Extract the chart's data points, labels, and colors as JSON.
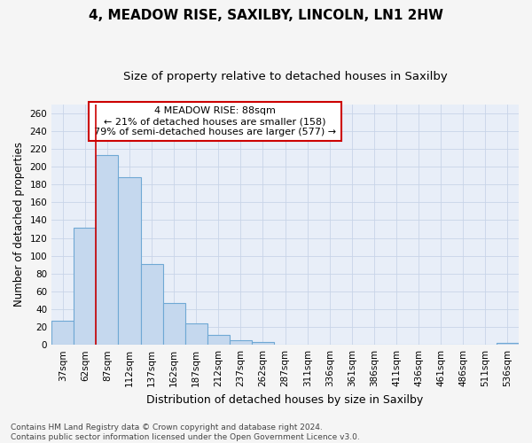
{
  "title": "4, MEADOW RISE, SAXILBY, LINCOLN, LN1 2HW",
  "subtitle": "Size of property relative to detached houses in Saxilby",
  "xlabel": "Distribution of detached houses by size in Saxilby",
  "ylabel": "Number of detached properties",
  "categories": [
    "37sqm",
    "62sqm",
    "87sqm",
    "112sqm",
    "137sqm",
    "162sqm",
    "187sqm",
    "212sqm",
    "237sqm",
    "262sqm",
    "287sqm",
    "311sqm",
    "336sqm",
    "361sqm",
    "386sqm",
    "411sqm",
    "436sqm",
    "461sqm",
    "486sqm",
    "511sqm",
    "536sqm"
  ],
  "values": [
    27,
    131,
    213,
    188,
    91,
    47,
    24,
    11,
    5,
    3,
    0,
    0,
    0,
    0,
    0,
    0,
    0,
    0,
    0,
    0,
    2
  ],
  "bar_color": "#c5d8ee",
  "bar_edge_color": "#6fa8d4",
  "red_line_index": 2,
  "annotation_lines": [
    "4 MEADOW RISE: 88sqm",
    "← 21% of detached houses are smaller (158)",
    "79% of semi-detached houses are larger (577) →"
  ],
  "annotation_box_color": "#ffffff",
  "annotation_box_edge": "#cc0000",
  "ylim": [
    0,
    270
  ],
  "yticks": [
    0,
    20,
    40,
    60,
    80,
    100,
    120,
    140,
    160,
    180,
    200,
    220,
    240,
    260
  ],
  "grid_color": "#c8d4e8",
  "background_color": "#e8eef8",
  "fig_background": "#f5f5f5",
  "footnote": "Contains HM Land Registry data © Crown copyright and database right 2024.\nContains public sector information licensed under the Open Government Licence v3.0.",
  "title_fontsize": 11,
  "subtitle_fontsize": 9.5,
  "xlabel_fontsize": 9,
  "ylabel_fontsize": 8.5,
  "tick_fontsize": 7.5,
  "annotation_fontsize": 8,
  "footnote_fontsize": 6.5
}
